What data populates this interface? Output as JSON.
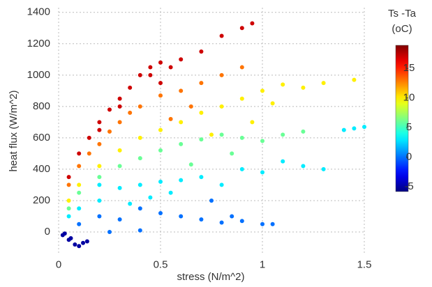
{
  "chart_data": {
    "type": "scatter",
    "x_label": "stress (N/m^2)",
    "y_label": "heat flux (W/m^2)",
    "colorbar_title": [
      "Ts -Ta",
      "(oC)"
    ],
    "xlim": [
      0,
      1.5
    ],
    "xticks": [
      0,
      0.5,
      1,
      1.5
    ],
    "ylim": [
      -140,
      1430
    ],
    "yticks": [
      0,
      200,
      400,
      600,
      800,
      1000,
      1200,
      1400
    ],
    "clim": [
      -5.8,
      18.9
    ],
    "cticks": [
      -5,
      0,
      5,
      10,
      15
    ],
    "colormap": "jet",
    "grid": true,
    "series": [
      {
        "x": [
          0.05,
          0.1,
          0.15,
          0.2,
          0.25,
          0.3,
          0.35,
          0.4,
          0.45,
          0.5,
          0.55,
          0.6,
          0.7,
          0.8,
          0.9,
          0.95,
          0.2,
          0.3,
          0.45,
          0.5,
          0.05,
          0.1,
          0.2,
          0.3,
          0.4,
          0.5,
          0.6,
          0.7,
          0.8,
          0.9,
          0.15,
          0.25,
          0.35,
          0.55,
          0.65,
          0.05,
          0.1,
          0.2,
          0.3,
          0.4,
          0.5,
          0.6,
          0.7,
          0.8,
          0.9,
          1.0,
          1.1,
          1.2,
          1.3,
          1.45,
          0.75,
          0.95,
          1.05,
          0.05,
          0.1,
          0.2,
          0.3,
          0.4,
          0.5,
          0.6,
          0.7,
          0.8,
          0.9,
          1.0,
          1.1,
          1.2,
          0.85,
          0.65,
          0.05,
          0.1,
          0.2,
          0.3,
          0.4,
          0.5,
          0.6,
          0.7,
          0.8,
          0.9,
          1.0,
          1.1,
          1.2,
          1.3,
          1.4,
          1.45,
          1.5,
          0.2,
          0.35,
          0.45,
          0.55,
          0.1,
          0.2,
          0.3,
          0.4,
          0.5,
          0.6,
          0.7,
          0.8,
          0.9,
          1.0,
          1.05,
          0.75,
          0.85,
          0.25,
          0.4,
          0.02,
          0.05,
          0.08,
          0.1,
          0.12,
          0.14,
          0.03,
          0.06
        ],
        "values": [
          350,
          500,
          600,
          700,
          780,
          850,
          920,
          1000,
          1050,
          1080,
          1050,
          1100,
          1150,
          1250,
          1300,
          1330,
          650,
          800,
          1000,
          950,
          300,
          420,
          560,
          700,
          800,
          870,
          900,
          950,
          1000,
          1050,
          500,
          640,
          760,
          720,
          800,
          200,
          300,
          420,
          520,
          600,
          650,
          700,
          760,
          800,
          850,
          900,
          940,
          920,
          950,
          970,
          620,
          700,
          820,
          150,
          250,
          350,
          420,
          470,
          520,
          560,
          590,
          620,
          600,
          580,
          620,
          640,
          500,
          430,
          100,
          150,
          200,
          280,
          300,
          320,
          330,
          350,
          300,
          400,
          380,
          450,
          420,
          400,
          650,
          660,
          670,
          300,
          180,
          220,
          250,
          50,
          100,
          80,
          150,
          120,
          100,
          80,
          60,
          70,
          50,
          50,
          200,
          100,
          0,
          10,
          -20,
          -50,
          -80,
          -90,
          -70,
          -60,
          -10,
          -40
        ],
        "c": [
          17,
          17,
          17,
          17,
          17,
          17,
          17,
          17,
          17,
          17,
          17,
          17,
          17,
          17,
          17,
          17,
          17,
          17,
          17,
          17,
          13,
          13,
          13,
          13,
          13,
          13,
          13,
          13,
          13,
          13,
          13,
          13,
          13,
          13,
          13,
          10,
          10,
          10,
          10,
          10,
          10,
          10,
          10,
          10,
          10,
          10,
          10,
          10,
          10,
          10,
          10,
          10,
          10,
          6,
          6,
          6,
          6,
          6,
          6,
          6,
          6,
          6,
          6,
          6,
          6,
          6,
          6,
          6,
          3,
          3,
          3,
          3,
          3,
          3,
          3,
          3,
          3,
          3,
          3,
          3,
          3,
          3,
          3,
          3,
          3,
          3,
          3,
          3,
          3,
          0,
          0,
          0,
          0,
          0,
          0,
          0,
          0,
          0,
          0,
          0,
          0,
          0,
          0,
          0,
          -5,
          -5,
          -5,
          -5,
          -5,
          -5,
          -5,
          -5
        ]
      }
    ]
  }
}
